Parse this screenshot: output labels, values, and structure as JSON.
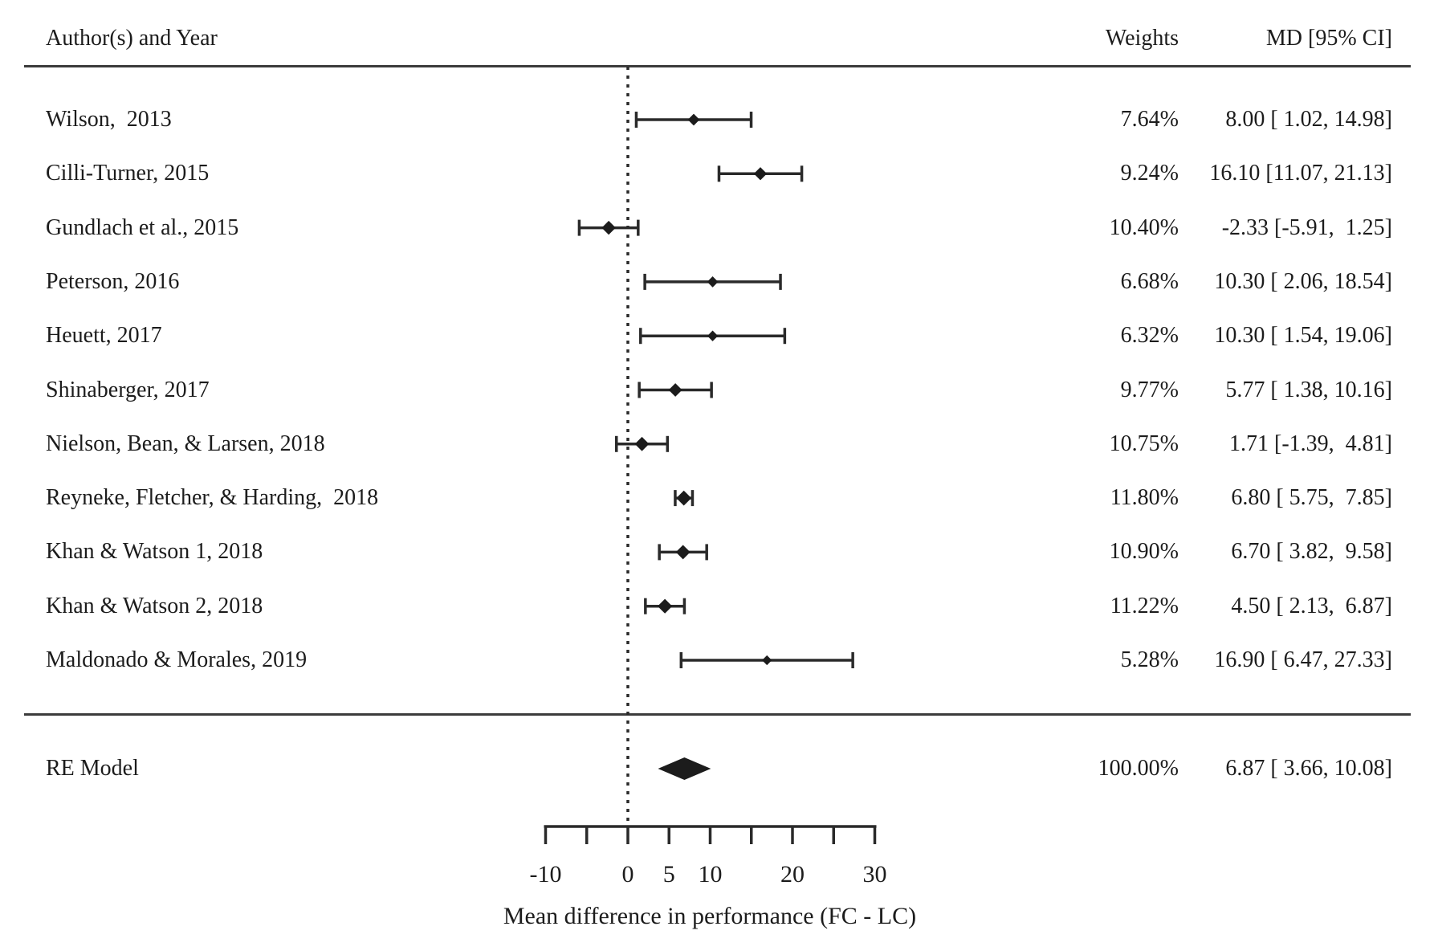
{
  "header": {
    "author_col": "Author(s) and Year",
    "weights_col": "Weights",
    "md_col": "MD [95% CI]"
  },
  "chart_data": {
    "type": "forest",
    "xlabel": "Mean difference in performance (FC - LC)",
    "x_axis": {
      "min": -10,
      "max": 30,
      "tick_step": 5,
      "ticks": [
        -10,
        -5,
        0,
        5,
        10,
        15,
        20,
        25,
        30
      ],
      "labeled_ticks": [
        "-10",
        "0",
        "5",
        "10",
        "20",
        "30"
      ],
      "zero_reference_line": 0
    },
    "studies": [
      {
        "label": "Wilson,  2013",
        "weight": "7.64%",
        "weight_pct": 7.64,
        "estimate": 8.0,
        "ci_low": 1.02,
        "ci_high": 14.98,
        "md": "8.00 [ 1.02, 14.98]"
      },
      {
        "label": "Cilli-Turner, 2015",
        "weight": "9.24%",
        "weight_pct": 9.24,
        "estimate": 16.1,
        "ci_low": 11.07,
        "ci_high": 21.13,
        "md": "16.10 [11.07, 21.13]"
      },
      {
        "label": "Gundlach et al., 2015",
        "weight": "10.40%",
        "weight_pct": 10.4,
        "estimate": -2.33,
        "ci_low": -5.91,
        "ci_high": 1.25,
        "md": "-2.33 [-5.91,  1.25]"
      },
      {
        "label": "Peterson, 2016",
        "weight": "6.68%",
        "weight_pct": 6.68,
        "estimate": 10.3,
        "ci_low": 2.06,
        "ci_high": 18.54,
        "md": "10.30 [ 2.06, 18.54]"
      },
      {
        "label": "Heuett, 2017",
        "weight": "6.32%",
        "weight_pct": 6.32,
        "estimate": 10.3,
        "ci_low": 1.54,
        "ci_high": 19.06,
        "md": "10.30 [ 1.54, 19.06]"
      },
      {
        "label": "Shinaberger, 2017",
        "weight": "9.77%",
        "weight_pct": 9.77,
        "estimate": 5.77,
        "ci_low": 1.38,
        "ci_high": 10.16,
        "md": "5.77 [ 1.38, 10.16]"
      },
      {
        "label": "Nielson, Bean, & Larsen, 2018",
        "weight": "10.75%",
        "weight_pct": 10.75,
        "estimate": 1.71,
        "ci_low": -1.39,
        "ci_high": 4.81,
        "md": "1.71 [-1.39,  4.81]"
      },
      {
        "label": "Reyneke, Fletcher, & Harding,  2018",
        "weight": "11.80%",
        "weight_pct": 11.8,
        "estimate": 6.8,
        "ci_low": 5.75,
        "ci_high": 7.85,
        "md": "6.80 [ 5.75,  7.85]"
      },
      {
        "label": "Khan & Watson 1, 2018",
        "weight": "10.90%",
        "weight_pct": 10.9,
        "estimate": 6.7,
        "ci_low": 3.82,
        "ci_high": 9.58,
        "md": "6.70 [ 3.82,  9.58]"
      },
      {
        "label": "Khan & Watson 2, 2018",
        "weight": "11.22%",
        "weight_pct": 11.22,
        "estimate": 4.5,
        "ci_low": 2.13,
        "ci_high": 6.87,
        "md": "4.50 [ 2.13,  6.87]"
      },
      {
        "label": "Maldonado & Morales, 2019",
        "weight": "5.28%",
        "weight_pct": 5.28,
        "estimate": 16.9,
        "ci_low": 6.47,
        "ci_high": 27.33,
        "md": "16.90 [ 6.47, 27.33]"
      }
    ],
    "summary": {
      "label": "RE Model",
      "weight": "100.00%",
      "weight_pct": 100.0,
      "estimate": 6.87,
      "ci_low": 3.66,
      "ci_high": 10.08,
      "md": "6.87 [ 3.66, 10.08]"
    }
  },
  "colors": {
    "ink": "#1c1c1c",
    "line": "#2a2a2a"
  }
}
